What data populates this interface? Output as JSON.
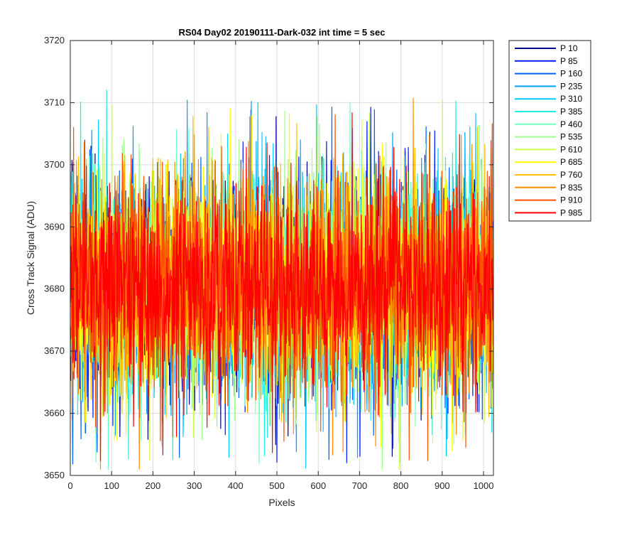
{
  "chart_data": {
    "type": "line",
    "title": "RS04 Day02 20190111-Dark-032 int time = 5 sec",
    "xlabel": "Pixels",
    "ylabel": "Cross Track Signal (ADU)",
    "xlim": [
      0,
      1024
    ],
    "ylim": [
      3650,
      3720
    ],
    "xticks": [
      0,
      100,
      200,
      300,
      400,
      500,
      600,
      700,
      800,
      900,
      1000
    ],
    "yticks": [
      3650,
      3660,
      3670,
      3680,
      3690,
      3700,
      3710,
      3720
    ],
    "grid": true,
    "legend_position": "outside-top-right",
    "points_per_series": 1024,
    "noise": {
      "mean": 3680.5,
      "typical_range": [
        3664,
        3698
      ],
      "extreme_range": [
        3651,
        3712
      ]
    },
    "series": [
      {
        "name": "P 10",
        "color": "#00008f"
      },
      {
        "name": "P 85",
        "color": "#0018ff"
      },
      {
        "name": "P 160",
        "color": "#0060ff"
      },
      {
        "name": "P 235",
        "color": "#00a0ff"
      },
      {
        "name": "P 310",
        "color": "#00ccff"
      },
      {
        "name": "P 385",
        "color": "#20efdf"
      },
      {
        "name": "P 460",
        "color": "#6fffbf"
      },
      {
        "name": "P 535",
        "color": "#9fff8f"
      },
      {
        "name": "P 610",
        "color": "#cfff4f"
      },
      {
        "name": "P 685",
        "color": "#ffff00"
      },
      {
        "name": "P 760",
        "color": "#ffbf00"
      },
      {
        "name": "P 835",
        "color": "#ff8f00"
      },
      {
        "name": "P 910",
        "color": "#ff4f00"
      },
      {
        "name": "P 985",
        "color": "#ff0000"
      }
    ]
  }
}
